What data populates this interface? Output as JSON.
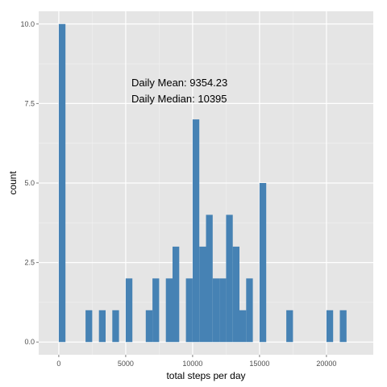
{
  "chart_data": {
    "type": "bar",
    "subtype": "histogram",
    "title": "",
    "xlabel": "total steps per day",
    "ylabel": "count",
    "xlim": [
      -1500,
      23500
    ],
    "ylim": [
      -0.4,
      10.4
    ],
    "x_ticks": [
      0,
      5000,
      10000,
      15000,
      20000
    ],
    "x_tick_labels": [
      "0",
      "5000",
      "10000",
      "15000",
      "20000"
    ],
    "y_ticks": [
      0,
      2.5,
      5,
      7.5,
      10
    ],
    "y_tick_labels": [
      "0.0",
      "2.5",
      "5.0",
      "7.5",
      "10.0"
    ],
    "grid": true,
    "bin_width": 500,
    "bins": [
      {
        "x_start": 0,
        "count": 10
      },
      {
        "x_start": 2000,
        "count": 1
      },
      {
        "x_start": 3000,
        "count": 1
      },
      {
        "x_start": 4000,
        "count": 1
      },
      {
        "x_start": 5000,
        "count": 2
      },
      {
        "x_start": 6500,
        "count": 1
      },
      {
        "x_start": 7000,
        "count": 2
      },
      {
        "x_start": 8000,
        "count": 2
      },
      {
        "x_start": 8500,
        "count": 3
      },
      {
        "x_start": 9500,
        "count": 2
      },
      {
        "x_start": 10000,
        "count": 7
      },
      {
        "x_start": 10500,
        "count": 3
      },
      {
        "x_start": 11000,
        "count": 4
      },
      {
        "x_start": 11500,
        "count": 2
      },
      {
        "x_start": 12000,
        "count": 2
      },
      {
        "x_start": 12500,
        "count": 4
      },
      {
        "x_start": 13000,
        "count": 3
      },
      {
        "x_start": 13500,
        "count": 1
      },
      {
        "x_start": 14000,
        "count": 2
      },
      {
        "x_start": 15000,
        "count": 5
      },
      {
        "x_start": 17000,
        "count": 1
      },
      {
        "x_start": 20000,
        "count": 1
      },
      {
        "x_start": 21000,
        "count": 1
      }
    ],
    "annotations": [
      "Daily Mean: 9354.23",
      "Daily Median: 10395"
    ],
    "colors": {
      "bar": "#4682b4",
      "panel_background": "#e5e5e5",
      "grid_major": "#ffffff",
      "grid_minor": "#f2f2f2",
      "tick_text": "#4d4d4d"
    }
  }
}
